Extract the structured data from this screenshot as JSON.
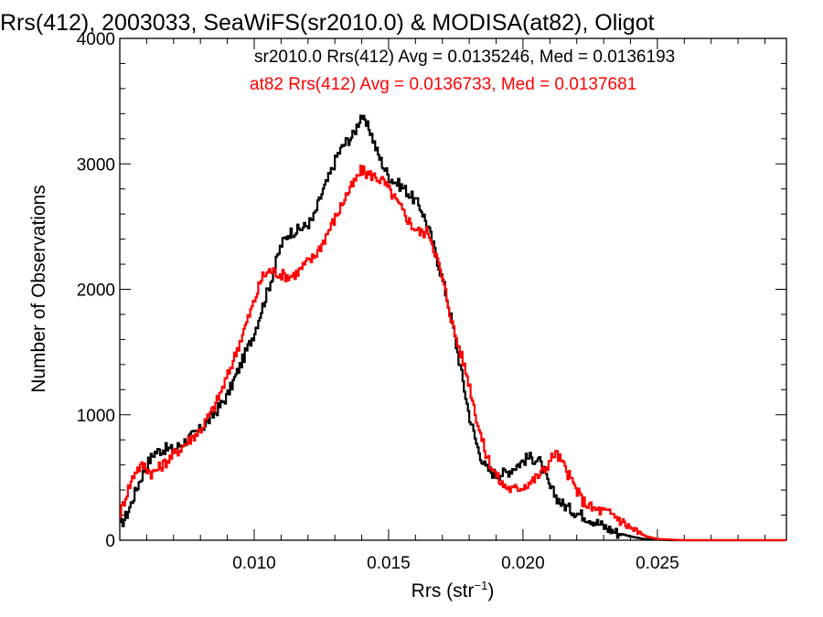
{
  "chart_data": {
    "type": "line",
    "title": "Rrs(412), 2003033, SeaWiFS(sr2010.0) & MODISA(at82), Oligot",
    "xlabel": "Rrs (str",
    "xlabel_sup": "−1",
    "xlabel_close": ")",
    "ylabel": "Number of Observations",
    "xlim": [
      0.005,
      0.0298
    ],
    "ylim": [
      0,
      4000
    ],
    "grid": false,
    "legend_position": "top-right",
    "x_ticks": [
      {
        "value": 0.01,
        "label": "0.010"
      },
      {
        "value": 0.015,
        "label": "0.015"
      },
      {
        "value": 0.02,
        "label": "0.020"
      },
      {
        "value": 0.025,
        "label": "0.025"
      }
    ],
    "y_ticks": [
      {
        "value": 0,
        "label": "0"
      },
      {
        "value": 1000,
        "label": "1000"
      },
      {
        "value": 2000,
        "label": "2000"
      },
      {
        "value": 3000,
        "label": "3000"
      },
      {
        "value": 4000,
        "label": "4000"
      }
    ],
    "series": [
      {
        "name": "sr2010.0",
        "legend": "sr2010.0 Rrs(412) Avg = 0.0135246, Med = 0.0136193",
        "color": "#000000",
        "x": [
          0.005,
          0.0053,
          0.0057,
          0.006,
          0.0063,
          0.0067,
          0.007,
          0.0075,
          0.008,
          0.0085,
          0.009,
          0.0095,
          0.01,
          0.0103,
          0.0106,
          0.011,
          0.0113,
          0.0116,
          0.0119,
          0.0122,
          0.0125,
          0.0128,
          0.0131,
          0.0134,
          0.0137,
          0.014,
          0.0141,
          0.0143,
          0.0146,
          0.015,
          0.0153,
          0.0156,
          0.0159,
          0.0162,
          0.0165,
          0.0168,
          0.0171,
          0.0174,
          0.0177,
          0.018,
          0.0183,
          0.0186,
          0.019,
          0.0194,
          0.0198,
          0.0202,
          0.0206,
          0.021,
          0.0214,
          0.0218,
          0.0222,
          0.0226,
          0.023,
          0.0235,
          0.024,
          0.0245,
          0.025,
          0.0255,
          0.026,
          0.027,
          0.0298
        ],
        "y": [
          100,
          220,
          450,
          600,
          700,
          730,
          720,
          800,
          880,
          1000,
          1150,
          1400,
          1650,
          1850,
          2050,
          2350,
          2450,
          2470,
          2500,
          2560,
          2750,
          2900,
          3070,
          3170,
          3230,
          3400,
          3320,
          3280,
          3080,
          2900,
          2850,
          2800,
          2730,
          2650,
          2480,
          2250,
          2000,
          1700,
          1350,
          1000,
          750,
          580,
          520,
          540,
          600,
          660,
          640,
          420,
          300,
          240,
          200,
          160,
          110,
          60,
          30,
          10,
          5,
          0,
          0,
          0,
          0
        ]
      },
      {
        "name": "at82",
        "legend": "at82 Rrs(412) Avg = 0.0136733, Med = 0.0137681",
        "color": "#ff0000",
        "x": [
          0.005,
          0.0053,
          0.0056,
          0.0059,
          0.0062,
          0.0066,
          0.007,
          0.0075,
          0.008,
          0.0085,
          0.009,
          0.0095,
          0.01,
          0.0103,
          0.0106,
          0.011,
          0.0113,
          0.0116,
          0.0119,
          0.0122,
          0.0125,
          0.0128,
          0.0131,
          0.0134,
          0.0137,
          0.014,
          0.0142,
          0.0145,
          0.0148,
          0.015,
          0.0153,
          0.0156,
          0.0159,
          0.0162,
          0.0165,
          0.0168,
          0.0171,
          0.0174,
          0.0177,
          0.018,
          0.0183,
          0.0186,
          0.0189,
          0.0192,
          0.0196,
          0.02,
          0.0204,
          0.0208,
          0.0212,
          0.0214,
          0.0218,
          0.0222,
          0.0226,
          0.023,
          0.0234,
          0.0238,
          0.0242,
          0.0246,
          0.025,
          0.0255,
          0.026,
          0.027,
          0.0298
        ],
        "y": [
          200,
          400,
          560,
          600,
          530,
          600,
          680,
          780,
          880,
          1050,
          1300,
          1600,
          1900,
          2100,
          2150,
          2120,
          2100,
          2130,
          2200,
          2250,
          2350,
          2480,
          2600,
          2740,
          2840,
          2950,
          2920,
          2900,
          2860,
          2800,
          2700,
          2600,
          2500,
          2450,
          2460,
          2250,
          2000,
          1700,
          1480,
          1250,
          950,
          700,
          560,
          450,
          400,
          430,
          480,
          560,
          700,
          640,
          480,
          320,
          250,
          230,
          200,
          130,
          70,
          30,
          10,
          5,
          0,
          0,
          0
        ]
      }
    ]
  }
}
